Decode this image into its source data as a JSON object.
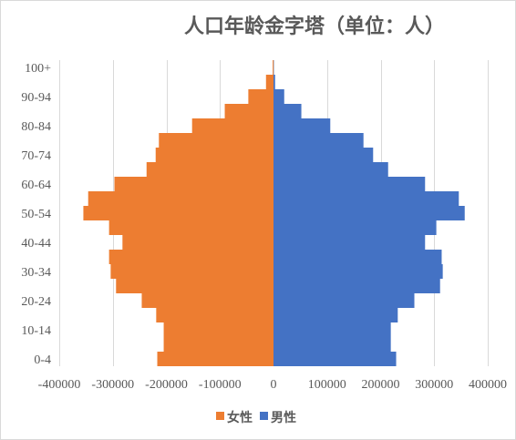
{
  "chart_data": {
    "type": "bar",
    "orientation": "horizontal",
    "title": "人口年龄金字塔（单位：人）",
    "xlabel": "",
    "ylabel": "",
    "categories": [
      "0-4",
      "",
      "10-14",
      "",
      "20-24",
      "",
      "30-34",
      "",
      "40-44",
      "",
      "50-54",
      "",
      "60-64",
      "",
      "70-74",
      "",
      "80-84",
      "",
      "90-94",
      "",
      "100+"
    ],
    "series": [
      {
        "name": "女性",
        "color": "#ED7D31",
        "values": [
          -217000,
          -205000,
          -205000,
          -219000,
          -246000,
          -294000,
          -304000,
          -307000,
          -282000,
          -307000,
          -355000,
          -346000,
          -297000,
          -237000,
          -220000,
          -214000,
          -152000,
          -91000,
          -47000,
          -14000,
          -1500
        ]
      },
      {
        "name": "男性",
        "color": "#4472C4",
        "values": [
          229000,
          219000,
          219000,
          232000,
          263000,
          311000,
          316000,
          314000,
          283000,
          304000,
          357000,
          346000,
          283000,
          214000,
          186000,
          168000,
          106000,
          52000,
          20000,
          3000,
          400
        ]
      }
    ],
    "xlim": [
      -400000,
      400000
    ],
    "x_ticks": [
      -400000,
      -300000,
      -200000,
      -100000,
      0,
      100000,
      200000,
      300000,
      400000
    ],
    "grid": {
      "vertical": true,
      "horizontal": false
    },
    "legend_position": "bottom",
    "gridline_color": "#D9D9D9",
    "text_color": "#595959"
  }
}
